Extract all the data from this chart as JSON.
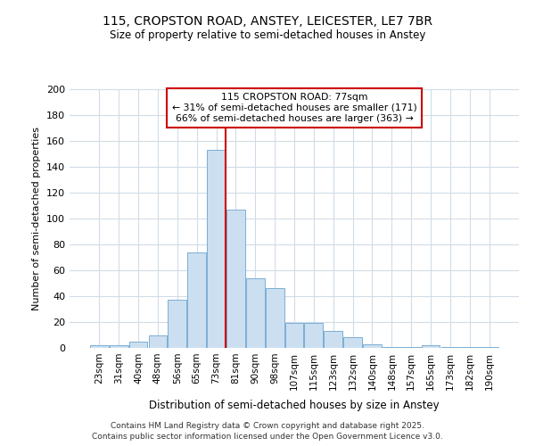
{
  "title_line1": "115, CROPSTON ROAD, ANSTEY, LEICESTER, LE7 7BR",
  "title_line2": "Size of property relative to semi-detached houses in Anstey",
  "xlabel": "Distribution of semi-detached houses by size in Anstey",
  "ylabel": "Number of semi-detached properties",
  "bar_labels": [
    "23sqm",
    "31sqm",
    "40sqm",
    "48sqm",
    "56sqm",
    "65sqm",
    "73sqm",
    "81sqm",
    "90sqm",
    "98sqm",
    "107sqm",
    "115sqm",
    "123sqm",
    "132sqm",
    "140sqm",
    "148sqm",
    "157sqm",
    "165sqm",
    "173sqm",
    "182sqm",
    "190sqm"
  ],
  "bar_values": [
    2,
    2,
    5,
    10,
    37,
    74,
    153,
    107,
    54,
    46,
    19,
    19,
    13,
    8,
    3,
    1,
    1,
    2,
    1,
    1,
    1
  ],
  "bar_color": "#ccdff0",
  "bar_edge_color": "#7aafd4",
  "vline_color": "#cc0000",
  "annotation_title": "115 CROPSTON ROAD: 77sqm",
  "annotation_line1": "← 31% of semi-detached houses are smaller (171)",
  "annotation_line2": "66% of semi-detached houses are larger (363) →",
  "annotation_box_color": "white",
  "annotation_box_edge_color": "#cc0000",
  "ylim": [
    0,
    200
  ],
  "yticks": [
    0,
    20,
    40,
    60,
    80,
    100,
    120,
    140,
    160,
    180,
    200
  ],
  "bg_color": "#ffffff",
  "grid_color": "#d0dce8",
  "footer_line1": "Contains HM Land Registry data © Crown copyright and database right 2025.",
  "footer_line2": "Contains public sector information licensed under the Open Government Licence v3.0."
}
